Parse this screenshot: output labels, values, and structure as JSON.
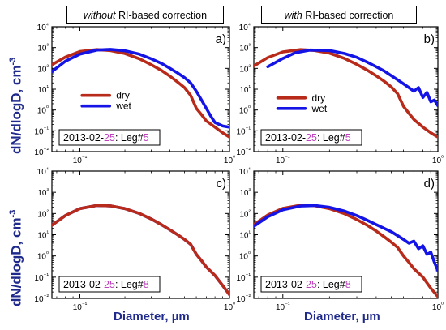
{
  "headers": {
    "left": {
      "em": "without",
      "rest": " RI-based correction"
    },
    "right": {
      "em": "with",
      "rest": " RI-based correction"
    }
  },
  "axis_labels": {
    "y_left": "dN/dlogD, cm",
    "y_left_sup": "-3",
    "y_lower": "dN/dlogD, cm",
    "y_lower_sup": "-3",
    "x_left": "Diameter, µm",
    "x_right": "Diameter, µm"
  },
  "colors": {
    "dry": "#b82a1a",
    "wet": "#1414e6",
    "date_accent": "#c040c0",
    "ylabel": "#1f2a8c"
  },
  "chart_data": [
    {
      "type": "line",
      "panel": "a)",
      "xscale": "log",
      "yscale": "log",
      "xlim": [
        0.065,
        1.0
      ],
      "ylim": [
        0.01,
        10000
      ],
      "x_ticks": [
        "10⁻¹",
        "10⁰"
      ],
      "y_ticks": [
        "10⁻²",
        "10⁻¹",
        "10⁰",
        "10¹",
        "10²",
        "10³",
        "10⁴"
      ],
      "annotation": {
        "prefix": "2013-02-",
        "day": "25",
        "mid": ": Leg#",
        "leg": "5"
      },
      "legend": {
        "placement": "upper-left",
        "entries": [
          "dry",
          "wet"
        ]
      },
      "series": [
        {
          "name": "dry",
          "x": [
            0.065,
            0.08,
            0.1,
            0.13,
            0.16,
            0.2,
            0.25,
            0.3,
            0.35,
            0.4,
            0.45,
            0.5,
            0.55,
            0.6,
            0.65,
            0.7,
            0.8,
            0.9,
            1.0
          ],
          "y": [
            150,
            350,
            650,
            800,
            720,
            520,
            290,
            150,
            80,
            42,
            22,
            12,
            5,
            1.2,
            0.6,
            0.3,
            0.15,
            0.08,
            0.05
          ]
        },
        {
          "name": "wet",
          "x": [
            0.065,
            0.08,
            0.1,
            0.13,
            0.16,
            0.2,
            0.25,
            0.3,
            0.35,
            0.4,
            0.45,
            0.5,
            0.55,
            0.6,
            0.65,
            0.7,
            0.75,
            0.8,
            0.9,
            1.0
          ],
          "y": [
            70,
            220,
            480,
            760,
            820,
            700,
            480,
            290,
            175,
            100,
            60,
            36,
            20,
            8,
            3,
            1.2,
            0.5,
            0.25,
            0.17,
            0.15
          ]
        }
      ]
    },
    {
      "type": "line",
      "panel": "b)",
      "xscale": "log",
      "yscale": "log",
      "xlim": [
        0.065,
        1.0
      ],
      "ylim": [
        0.01,
        10000
      ],
      "x_ticks": [
        "10⁻¹",
        "10⁰"
      ],
      "y_ticks": [
        "10⁻²",
        "10⁻¹",
        "10⁰",
        "10¹",
        "10²",
        "10³",
        "10⁴"
      ],
      "annotation": {
        "prefix": "2013-02-",
        "day": "25",
        "mid": ": Leg#",
        "leg": "5"
      },
      "legend": {
        "placement": "center-left",
        "entries": [
          "dry",
          "wet"
        ]
      },
      "series": [
        {
          "name": "dry",
          "x": [
            0.065,
            0.08,
            0.1,
            0.13,
            0.16,
            0.2,
            0.25,
            0.3,
            0.35,
            0.4,
            0.45,
            0.5,
            0.55,
            0.6,
            0.65,
            0.7,
            0.8,
            0.9,
            1.0
          ],
          "y": [
            130,
            330,
            620,
            800,
            730,
            540,
            300,
            155,
            82,
            44,
            24,
            13,
            6,
            1.5,
            0.7,
            0.35,
            0.15,
            0.08,
            0.05
          ]
        },
        {
          "name": "wet",
          "x": [
            0.08,
            0.1,
            0.12,
            0.15,
            0.2,
            0.25,
            0.3,
            0.35,
            0.4,
            0.45,
            0.5,
            0.55,
            0.6,
            0.65,
            0.7,
            0.75,
            0.8,
            0.85,
            0.9,
            0.95,
            1.0
          ],
          "y": [
            120,
            300,
            560,
            760,
            720,
            520,
            340,
            200,
            120,
            75,
            45,
            28,
            18,
            12,
            8,
            12,
            4,
            7,
            2.5,
            3,
            1.6
          ]
        }
      ]
    },
    {
      "type": "line",
      "panel": "c)",
      "xscale": "log",
      "yscale": "log",
      "xlim": [
        0.065,
        1.0
      ],
      "ylim": [
        0.01,
        10000
      ],
      "x_ticks": [
        "10⁻¹",
        "10⁰"
      ],
      "y_ticks": [
        "10⁻²",
        "10⁻¹",
        "10⁰",
        "10¹",
        "10²",
        "10³",
        "10⁴"
      ],
      "annotation": {
        "prefix": "2013-02-",
        "day": "25",
        "mid": ": Leg#",
        "leg": "8"
      },
      "series": [
        {
          "name": "dry",
          "x": [
            0.065,
            0.08,
            0.1,
            0.13,
            0.16,
            0.2,
            0.25,
            0.3,
            0.35,
            0.4,
            0.45,
            0.5,
            0.55,
            0.6,
            0.65,
            0.7,
            0.8,
            0.9,
            1.0
          ],
          "y": [
            28,
            80,
            170,
            240,
            230,
            170,
            100,
            55,
            30,
            17,
            10,
            6,
            3.5,
            1.2,
            0.6,
            0.3,
            0.12,
            0.04,
            0.015
          ]
        },
        {
          "name": "wet",
          "x": [
            0.065,
            0.08,
            0.1,
            0.13,
            0.16,
            0.2,
            0.25,
            0.3,
            0.35,
            0.4,
            0.45,
            0.5,
            0.55,
            0.6,
            0.65,
            0.7,
            0.8,
            0.9,
            1.0
          ],
          "y": [
            28,
            80,
            170,
            240,
            230,
            170,
            100,
            55,
            30,
            17,
            10,
            6,
            3.5,
            1.2,
            0.6,
            0.3,
            0.12,
            0.04,
            0.015
          ]
        }
      ]
    },
    {
      "type": "line",
      "panel": "d)",
      "xscale": "log",
      "yscale": "log",
      "xlim": [
        0.065,
        1.0
      ],
      "ylim": [
        0.01,
        10000
      ],
      "x_ticks": [
        "10⁻¹",
        "10⁰"
      ],
      "y_ticks": [
        "10⁻²",
        "10⁻¹",
        "10⁰",
        "10¹",
        "10²",
        "10³",
        "10⁴"
      ],
      "annotation": {
        "prefix": "2013-02-",
        "day": "25",
        "mid": ": Leg#",
        "leg": "8"
      },
      "series": [
        {
          "name": "dry",
          "x": [
            0.065,
            0.08,
            0.1,
            0.13,
            0.16,
            0.2,
            0.25,
            0.3,
            0.35,
            0.4,
            0.45,
            0.5,
            0.55,
            0.6,
            0.65,
            0.7,
            0.8,
            0.9,
            1.0
          ],
          "y": [
            30,
            85,
            175,
            245,
            235,
            170,
            98,
            52,
            28,
            15,
            8,
            4.5,
            2.5,
            1,
            0.5,
            0.25,
            0.1,
            0.03,
            0.012
          ]
        },
        {
          "name": "wet",
          "x": [
            0.065,
            0.08,
            0.1,
            0.13,
            0.16,
            0.2,
            0.25,
            0.3,
            0.35,
            0.4,
            0.45,
            0.5,
            0.55,
            0.6,
            0.65,
            0.7,
            0.75,
            0.8,
            0.85,
            0.9,
            0.95,
            1.0
          ],
          "y": [
            25,
            70,
            150,
            225,
            240,
            195,
            130,
            80,
            48,
            30,
            20,
            14,
            9,
            6,
            4,
            5,
            2.2,
            3,
            1.2,
            1.5,
            0.5,
            0.2
          ]
        }
      ]
    }
  ]
}
